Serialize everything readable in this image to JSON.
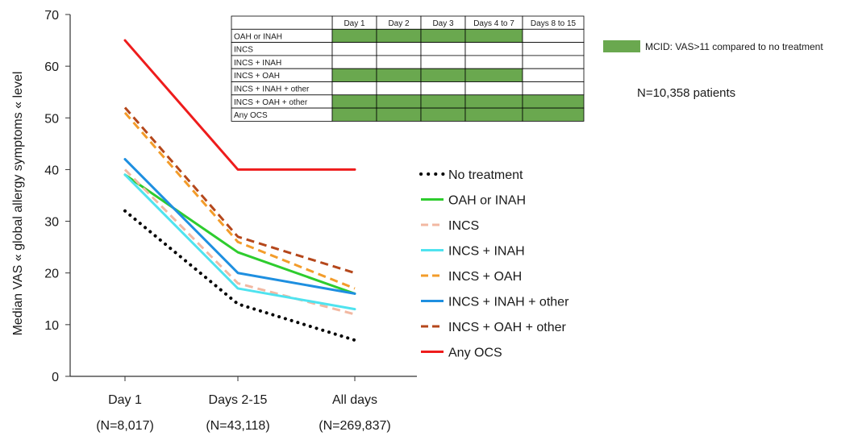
{
  "chart_data": {
    "type": "line",
    "ylabel": "Median VAS « global allergy symptoms « level",
    "ylim": [
      0,
      70
    ],
    "yticks": [
      0,
      10,
      20,
      30,
      40,
      50,
      60,
      70
    ],
    "categories": [
      "Day 1",
      "Days 2-15",
      "All days"
    ],
    "category_n": [
      "(N=8,017)",
      "(N=43,118)",
      "(N=269,837)"
    ],
    "series": [
      {
        "name": "No treatment",
        "values": [
          32,
          14,
          7
        ],
        "color": "#000000",
        "style": "dotted"
      },
      {
        "name": "OAH or INAH",
        "values": [
          39,
          24,
          16
        ],
        "color": "#2ecc2e",
        "style": "solid"
      },
      {
        "name": "INCS",
        "values": [
          40,
          18,
          12
        ],
        "color": "#f2b8a2",
        "style": "dashed"
      },
      {
        "name": "INCS + INAH",
        "values": [
          39,
          17,
          13
        ],
        "color": "#4fe3ef",
        "style": "solid"
      },
      {
        "name": "INCS + OAH",
        "values": [
          51,
          26,
          17
        ],
        "color": "#f39c2a",
        "style": "dashed"
      },
      {
        "name": "INCS + INAH + other",
        "values": [
          42,
          20,
          16
        ],
        "color": "#1e8fe0",
        "style": "solid"
      },
      {
        "name": "INCS + OAH + other",
        "values": [
          52,
          27,
          20
        ],
        "color": "#b5471b",
        "style": "dashed"
      },
      {
        "name": "Any OCS",
        "values": [
          65,
          40,
          40
        ],
        "color": "#ee1c1c",
        "style": "solid"
      }
    ],
    "legend_position": "right",
    "grid": false,
    "mcid_table": {
      "columns": [
        "Day 1",
        "Day 2",
        "Day 3",
        "Days 4 to 7",
        "Days 8 to 15"
      ],
      "rows": [
        {
          "label": "OAH or INAH",
          "cells": [
            true,
            true,
            true,
            true,
            false
          ]
        },
        {
          "label": "INCS",
          "cells": [
            false,
            false,
            false,
            false,
            false
          ]
        },
        {
          "label": "INCS + INAH",
          "cells": [
            false,
            false,
            false,
            false,
            false
          ]
        },
        {
          "label": "INCS + OAH",
          "cells": [
            true,
            true,
            true,
            true,
            false
          ]
        },
        {
          "label": "INCS + INAH + other",
          "cells": [
            false,
            false,
            false,
            false,
            false
          ]
        },
        {
          "label": "INCS + OAH + other",
          "cells": [
            true,
            true,
            true,
            true,
            true
          ]
        },
        {
          "label": "Any OCS",
          "cells": [
            true,
            true,
            true,
            true,
            true
          ]
        }
      ],
      "fill_color": "#6aa84f"
    },
    "mcid_legend": "MCID: VAS>11 compared to no treatment",
    "n_patients": "N=10,358 patients"
  }
}
